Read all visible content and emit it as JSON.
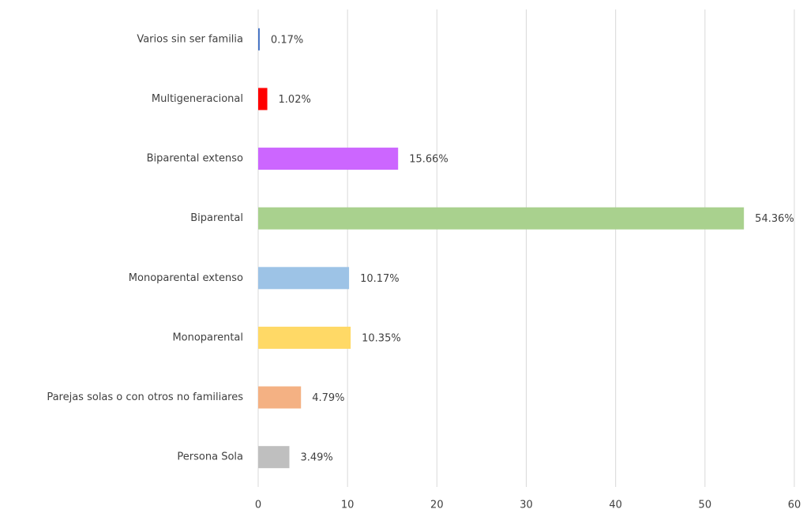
{
  "chart_data": {
    "type": "barh",
    "categories": [
      "Varios sin ser familia",
      "Multigeneracional",
      "Biparental extenso",
      "Biparental",
      "Monoparental extenso",
      "Monoparental",
      "Parejas solas o con otros no familiares",
      "Persona Sola"
    ],
    "values": [
      0.17,
      1.02,
      15.66,
      54.36,
      10.17,
      10.35,
      4.79,
      3.49
    ],
    "value_labels": [
      "0.17%",
      "1.02%",
      "15.66%",
      "54.36%",
      "10.17%",
      "10.35%",
      "4.79%",
      "3.49%"
    ],
    "colors": [
      "#4472c4",
      "#ff0000",
      "#cc66ff",
      "#a9d18e",
      "#9dc3e6",
      "#ffd966",
      "#f4b183",
      "#bfbfbf"
    ],
    "xlim": [
      0,
      60
    ],
    "xticks": [
      0,
      10,
      20,
      30,
      40,
      50,
      60
    ],
    "grid": true
  }
}
